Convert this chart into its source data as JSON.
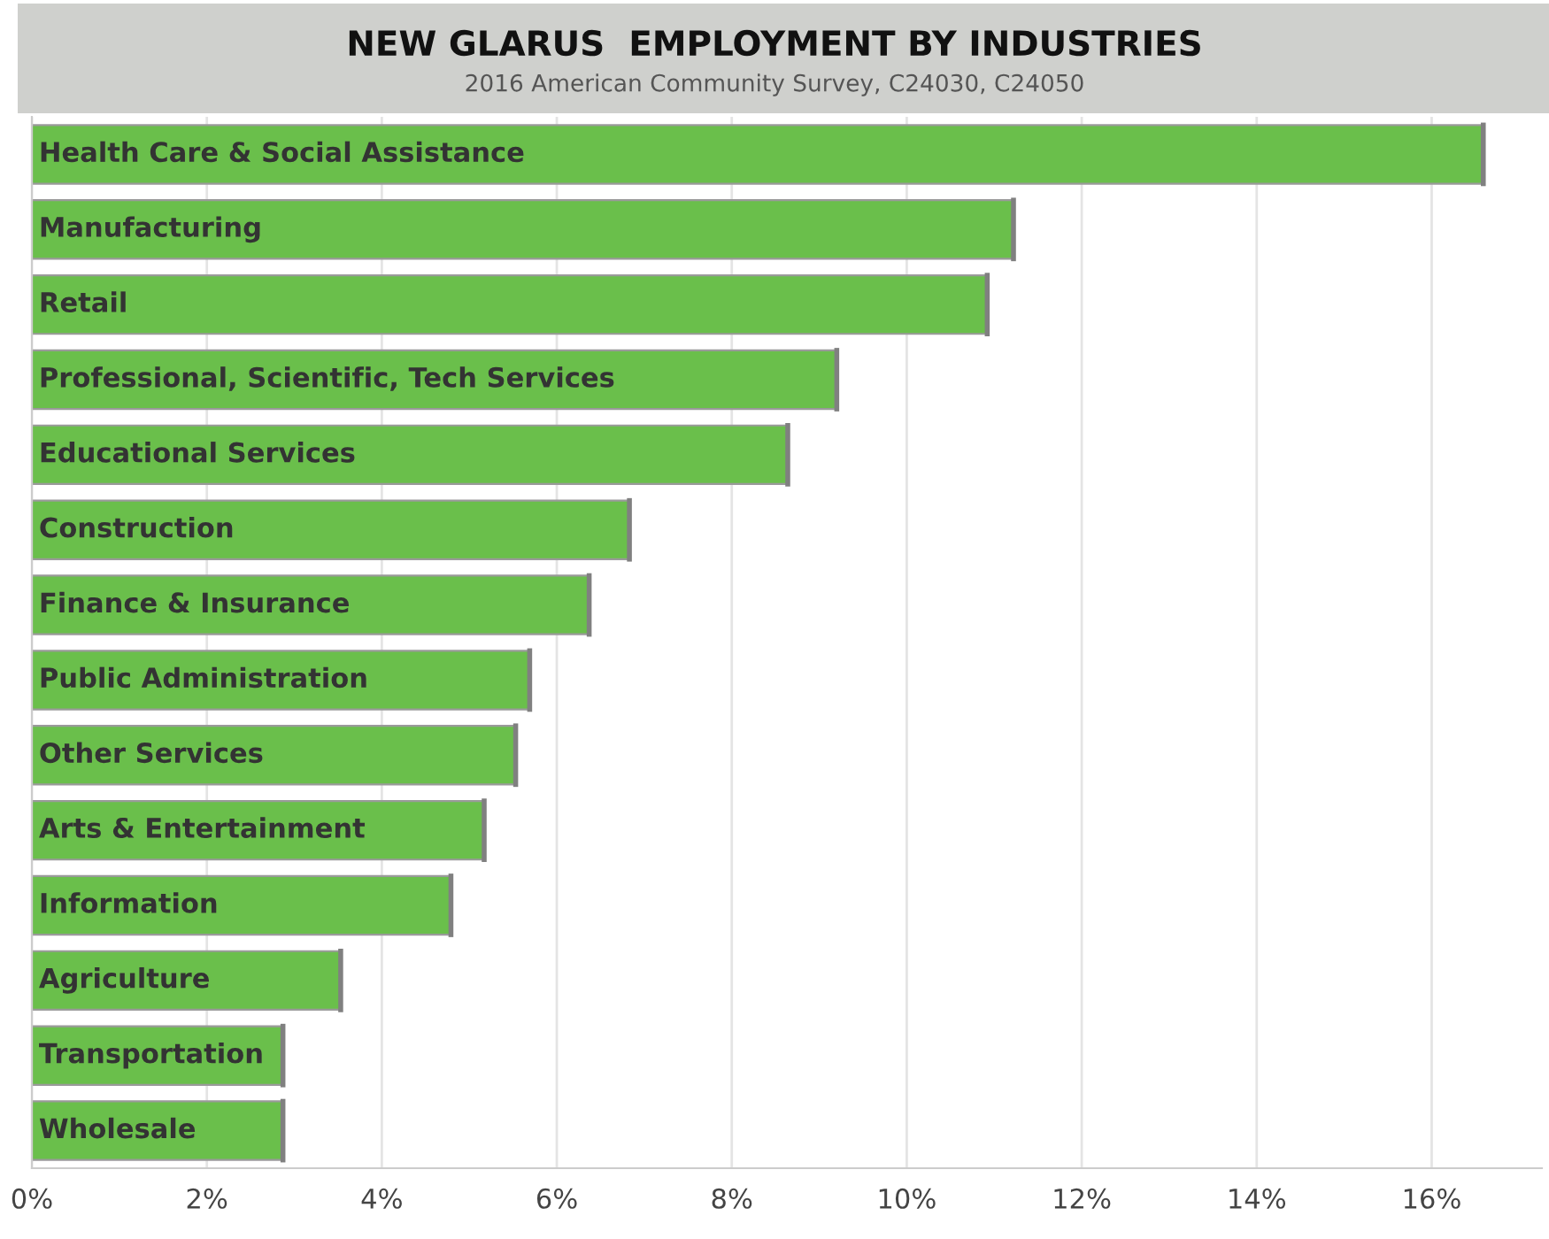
{
  "chart_data": {
    "type": "bar",
    "orientation": "horizontal",
    "title": "NEW GLARUS  EMPLOYMENT BY INDUSTRIES",
    "subtitle": "2016 American Community Survey, C24030, C24050",
    "categories": [
      "Health Care & Social Assistance",
      "Manufacturing",
      "Retail",
      "Professional, Scientific, Tech Services",
      "Educational Services",
      "Construction",
      "Finance & Insurance",
      "Public Administration",
      "Other Services",
      "Arts & Entertainment",
      "Information",
      "Agriculture",
      "Transportation",
      "Wholesale"
    ],
    "values": [
      16.59,
      11.22,
      10.92,
      9.2,
      8.64,
      6.83,
      6.37,
      5.69,
      5.53,
      5.17,
      4.79,
      3.53,
      2.87,
      2.87
    ],
    "color": "#6abf4b",
    "xlim": [
      0,
      17.26
    ],
    "xticks": [
      {
        "value": 0,
        "label": "0%"
      },
      {
        "value": 2,
        "label": "2%"
      },
      {
        "value": 4,
        "label": "4%"
      },
      {
        "value": 6,
        "label": "6%"
      },
      {
        "value": 8,
        "label": "8%"
      },
      {
        "value": 10,
        "label": "10%"
      },
      {
        "value": 12,
        "label": "12%"
      },
      {
        "value": 14,
        "label": "14%"
      },
      {
        "value": 16,
        "label": "16%"
      }
    ],
    "grid": "x"
  }
}
